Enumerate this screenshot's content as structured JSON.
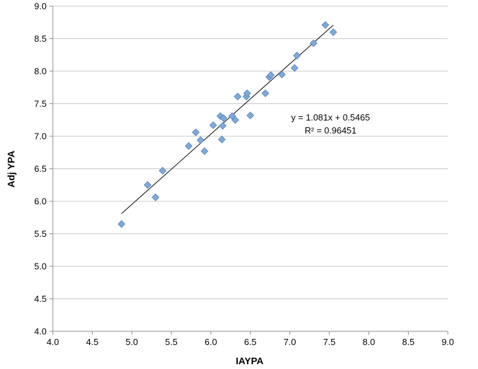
{
  "chart_data": {
    "type": "scatter",
    "title": "",
    "xlabel": "IAYPA",
    "ylabel": "Adj YPA",
    "xlim": [
      4.0,
      9.0
    ],
    "ylim": [
      4.0,
      9.0
    ],
    "xticks": [
      "4.0",
      "4.5",
      "5.0",
      "5.5",
      "6.0",
      "6.5",
      "7.0",
      "7.5",
      "8.0",
      "8.5",
      "9.0"
    ],
    "yticks": [
      "4.0",
      "4.5",
      "5.0",
      "5.5",
      "6.0",
      "6.5",
      "7.0",
      "7.5",
      "8.0",
      "8.5",
      "9.0"
    ],
    "grid": "horizontal",
    "legend": "none",
    "marker": "diamond",
    "marker_color": "#7fa9d9",
    "marker_edge_color": "#4f81bd",
    "trendline": {
      "type": "linear",
      "slope": 1.081,
      "intercept": 0.5465,
      "x_range": [
        4.87,
        7.55
      ],
      "color": "#000000"
    },
    "equation_text": "y = 1.081x + 0.5465",
    "r2_text": "R² = 0.96451",
    "points": [
      [
        4.87,
        5.65
      ],
      [
        5.2,
        6.25
      ],
      [
        5.3,
        6.06
      ],
      [
        5.39,
        6.47
      ],
      [
        5.72,
        6.85
      ],
      [
        5.81,
        7.06
      ],
      [
        5.87,
        6.94
      ],
      [
        5.92,
        6.77
      ],
      [
        6.03,
        7.17
      ],
      [
        6.12,
        7.31
      ],
      [
        6.14,
        6.95
      ],
      [
        6.15,
        7.16
      ],
      [
        6.16,
        7.28
      ],
      [
        6.27,
        7.31
      ],
      [
        6.31,
        7.25
      ],
      [
        6.34,
        7.61
      ],
      [
        6.45,
        7.61
      ],
      [
        6.46,
        7.66
      ],
      [
        6.5,
        7.32
      ],
      [
        6.69,
        7.66
      ],
      [
        6.74,
        7.91
      ],
      [
        6.76,
        7.94
      ],
      [
        6.9,
        7.95
      ],
      [
        7.06,
        8.05
      ],
      [
        7.09,
        8.24
      ],
      [
        7.3,
        8.43
      ],
      [
        7.45,
        8.71
      ],
      [
        7.55,
        8.6
      ]
    ]
  }
}
